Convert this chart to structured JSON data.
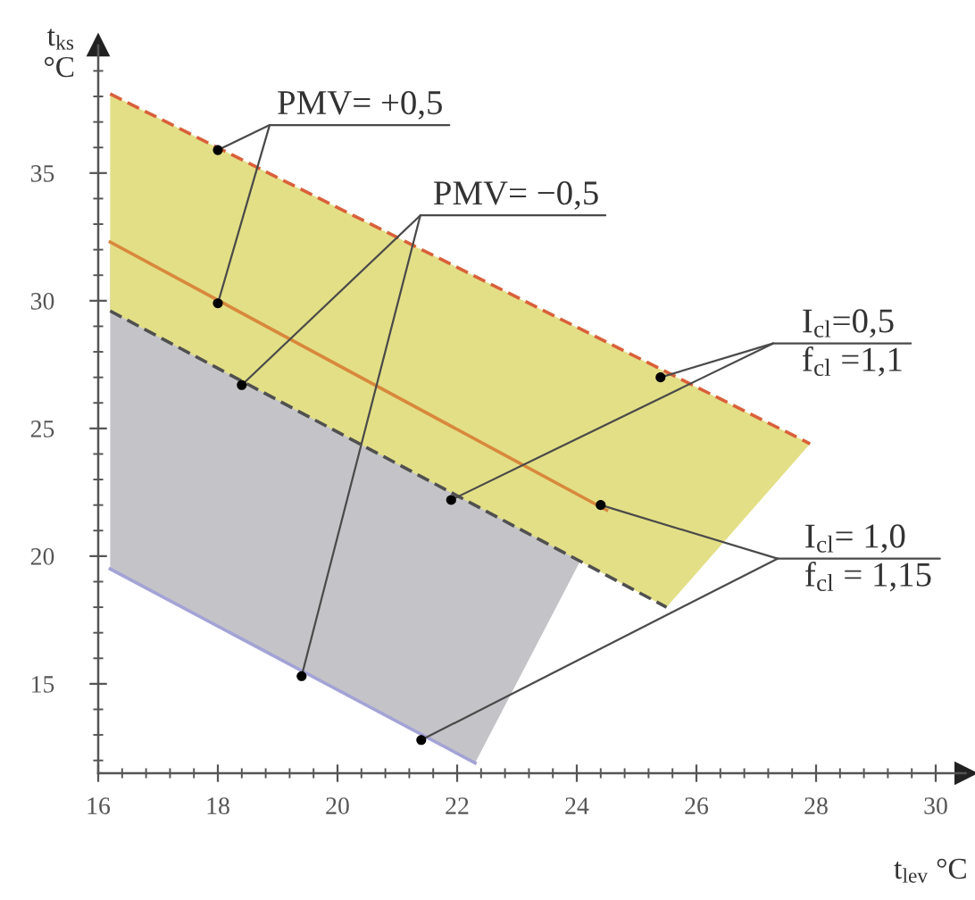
{
  "chart_data": {
    "type": "line",
    "xlabel": "t$_{lev}$ °C",
    "ylabel": "t$_{ks}$\n°C",
    "xlim": [
      16,
      30.5
    ],
    "ylim": [
      11.5,
      40
    ],
    "xticks": [
      16,
      {
        "value": 16.4,
        "label": null
      },
      {
        "value": 16.8,
        "label": null
      },
      {
        "value": 17.2,
        "label": null
      },
      {
        "value": 17.6,
        "label": null
      },
      18,
      {
        "value": 18.4,
        "label": null
      },
      {
        "value": 18.8,
        "label": null
      },
      {
        "value": 19.2,
        "label": null
      },
      {
        "value": 19.6,
        "label": null
      },
      20,
      {
        "value": 20.4,
        "label": null
      },
      {
        "value": 20.8,
        "label": null
      },
      {
        "value": 21.2,
        "label": null
      },
      {
        "value": 21.6,
        "label": null
      },
      22,
      {
        "value": 22.4,
        "label": null
      },
      {
        "value": 22.8,
        "label": null
      },
      {
        "value": 23.2,
        "label": null
      },
      {
        "value": 23.6,
        "label": null
      },
      24,
      {
        "value": 24.4,
        "label": null
      },
      {
        "value": 24.8,
        "label": null
      },
      {
        "value": 25.2,
        "label": null
      },
      {
        "value": 25.6,
        "label": null
      },
      26,
      {
        "value": 26.4,
        "label": null
      },
      {
        "value": 26.8,
        "label": null
      },
      {
        "value": 27.2,
        "label": null
      },
      {
        "value": 27.6,
        "label": null
      },
      28,
      {
        "value": 28.4,
        "label": null
      },
      {
        "value": 28.8,
        "label": null
      },
      {
        "value": 29.2,
        "label": null
      },
      {
        "value": 29.6,
        "label": null
      },
      30
    ],
    "yticks": [
      {
        "value": 12,
        "label": null
      },
      {
        "value": 13,
        "label": null
      },
      {
        "value": 14,
        "label": null
      },
      15,
      {
        "value": 16,
        "label": null
      },
      {
        "value": 17,
        "label": null
      },
      {
        "value": 18,
        "label": null
      },
      {
        "value": 19,
        "label": null
      },
      20,
      {
        "value": 21,
        "label": null
      },
      {
        "value": 22,
        "label": null
      },
      {
        "value": 23,
        "label": null
      },
      {
        "value": 24,
        "label": null
      },
      25,
      {
        "value": 26,
        "label": null
      },
      {
        "value": 27,
        "label": null
      },
      {
        "value": 28,
        "label": null
      },
      {
        "value": 29,
        "label": null
      },
      30,
      {
        "value": 31,
        "label": null
      },
      {
        "value": 32,
        "label": null
      },
      {
        "value": 33,
        "label": null
      },
      {
        "value": 34,
        "label": null
      },
      35,
      {
        "value": 36,
        "label": null
      },
      {
        "value": 37,
        "label": null
      },
      {
        "value": 38,
        "label": null
      },
      {
        "value": 39,
        "label": null
      }
    ],
    "series": [
      {
        "color": "#c4c4c8",
        "x": [
          16.2,
          22.3,
          24.5
        ],
        "values": [
          null,
          null,
          null
        ],
        "lower": [
          19.5,
          11.9,
          21.8
        ],
        "upper": [
          32.3,
          24.6,
          21.8
        ]
      },
      {
        "color": "#e3df86",
        "x": [
          16.2,
          25.5,
          27.9
        ],
        "values": [
          null,
          null,
          null
        ],
        "lower": [
          29.6,
          18.0,
          24.4
        ],
        "upper": [
          38.1,
          27.2,
          24.4
        ]
      },
      {
        "color": "#a3a3d6",
        "x": [
          16.2,
          22.3
        ],
        "values": [
          19.5,
          11.9
        ]
      },
      {
        "color": "#d8883c",
        "x": [
          16.2,
          24.5
        ],
        "values": [
          32.3,
          21.8
        ]
      },
      {
        "color": "#505050",
        "line_style": "dashed",
        "x": [
          16.2,
          25.5
        ],
        "values": [
          29.6,
          18.0
        ]
      },
      {
        "color": "#d9603a",
        "line_style": "dashed",
        "x": [
          16.2,
          27.9
        ],
        "values": [
          38.1,
          24.4
        ]
      },
      {
        "type": "scatter",
        "color": "#000000",
        "marker": "circle",
        "x": [
          18,
          18,
          18.4,
          19.4,
          25.4,
          21.9,
          24.4,
          21.4
        ],
        "values": [
          35.9,
          29.9,
          26.7,
          15.3,
          27.0,
          22.2,
          22.0,
          12.8
        ]
      }
    ],
    "annotations": [
      {
        "text": "PMV= +0,5",
        "x": 18,
        "y": 35.9
      },
      {
        "text": "PMV= −0,5",
        "x": 18.4,
        "y": 26.7
      },
      {
        "text": "I$_{cl}$=0,5\nf$_{cl}$ =1,1",
        "x": 25.4,
        "y": 27.0
      },
      {
        "text": "I$_{cl}$= 1,0\nf$_{cl}$ = 1,15",
        "x": 24.4,
        "y": 22.0
      }
    ]
  }
}
